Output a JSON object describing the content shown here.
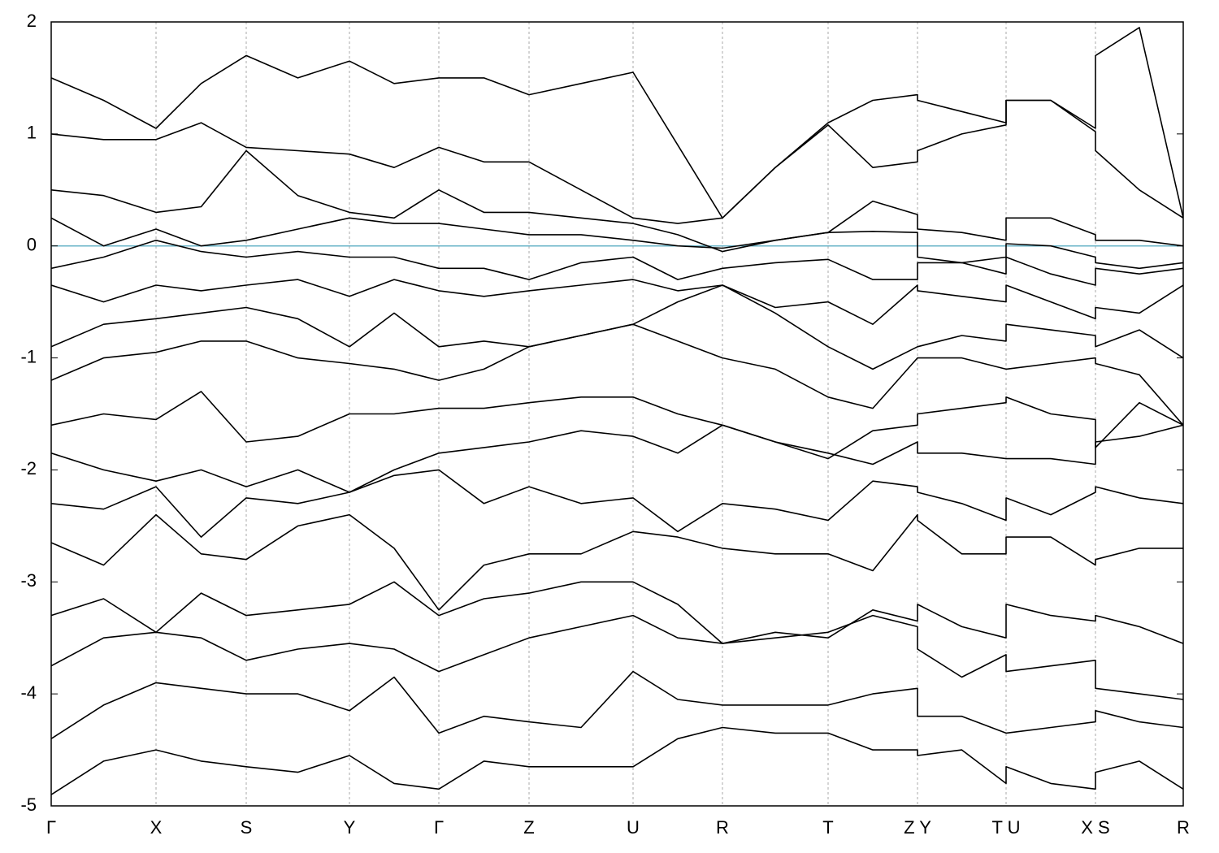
{
  "chart_data": {
    "type": "line",
    "x": [
      0,
      0.645,
      1.29,
      1.845,
      2.4,
      3.035,
      3.67,
      4.22,
      4.77,
      5.325,
      5.88,
      6.52,
      7.16,
      7.71,
      8.26,
      8.91,
      9.56,
      10.11,
      10.66,
      10.66,
      11.205,
      11.75,
      11.75,
      12.3,
      12.85,
      12.85,
      13.39,
      13.93
    ],
    "xlim": [
      0,
      13.93
    ],
    "xticks": [
      {
        "value": 0,
        "label": "Γ"
      },
      {
        "value": 1.29,
        "label": "X"
      },
      {
        "value": 2.4,
        "label": "S"
      },
      {
        "value": 3.67,
        "label": "Y"
      },
      {
        "value": 4.77,
        "label": "Γ"
      },
      {
        "value": 5.88,
        "label": "Z"
      },
      {
        "value": 7.16,
        "label": "U"
      },
      {
        "value": 8.26,
        "label": "R"
      },
      {
        "value": 9.56,
        "label": "T"
      },
      {
        "value": 10.66,
        "label": "Z Y"
      },
      {
        "value": 11.75,
        "label": "T U"
      },
      {
        "value": 12.85,
        "label": "X S"
      },
      {
        "value": 13.93,
        "label": "R"
      }
    ],
    "ylim": [
      -5,
      2
    ],
    "yticks": [
      -5,
      -4,
      -3,
      -2,
      -1,
      0,
      1,
      2
    ],
    "grid": "x",
    "reference_line": {
      "value": 0,
      "color": "#6ab4c8"
    },
    "series": [
      {
        "color": "#000000",
        "values": [
          1.5,
          1.3,
          1.05,
          1.45,
          1.7,
          1.5,
          1.65,
          1.45,
          1.5,
          1.5,
          1.35,
          1.45,
          1.55,
          0.9,
          0.25,
          0.7,
          1.1,
          1.3,
          1.35,
          1.3,
          1.2,
          1.1,
          1.3,
          1.3,
          1.05,
          1.7,
          1.95,
          0.25
        ]
      },
      {
        "color": "#000000",
        "values": [
          1.0,
          0.95,
          0.95,
          1.1,
          0.88,
          0.85,
          0.82,
          0.7,
          0.88,
          0.75,
          0.75,
          0.5,
          0.25,
          0.2,
          0.25,
          0.7,
          1.08,
          0.7,
          0.75,
          0.85,
          1.0,
          1.08,
          1.3,
          1.3,
          1.02,
          0.85,
          0.5,
          0.25
        ]
      },
      {
        "color": "#000000",
        "values": [
          0.5,
          0.45,
          0.3,
          0.35,
          0.85,
          0.45,
          0.3,
          0.25,
          0.5,
          0.3,
          0.3,
          0.25,
          0.2,
          0.1,
          -0.05,
          0.05,
          0.12,
          0.4,
          0.28,
          0.15,
          0.12,
          0.05,
          0.25,
          0.25,
          0.1,
          0.05,
          0.05,
          0.0
        ]
      },
      {
        "color": "#000000",
        "values": [
          0.25,
          0.0,
          0.15,
          0.0,
          0.05,
          0.15,
          0.25,
          0.2,
          0.2,
          0.15,
          0.1,
          0.1,
          0.05,
          0.0,
          -0.02,
          0.05,
          0.12,
          0.13,
          0.12,
          -0.1,
          -0.15,
          -0.1,
          0.02,
          0.0,
          -0.1,
          -0.15,
          -0.2,
          -0.15
        ]
      },
      {
        "color": "#000000",
        "values": [
          -0.2,
          -0.1,
          0.05,
          -0.05,
          -0.1,
          -0.05,
          -0.1,
          -0.1,
          -0.2,
          -0.2,
          -0.3,
          -0.15,
          -0.1,
          -0.3,
          -0.2,
          -0.15,
          -0.12,
          -0.3,
          -0.3,
          -0.15,
          -0.15,
          -0.25,
          -0.1,
          -0.25,
          -0.35,
          -0.2,
          -0.25,
          -0.2
        ]
      },
      {
        "color": "#000000",
        "values": [
          -0.35,
          -0.5,
          -0.35,
          -0.4,
          -0.35,
          -0.3,
          -0.45,
          -0.3,
          -0.4,
          -0.45,
          -0.4,
          -0.35,
          -0.3,
          -0.4,
          -0.35,
          -0.55,
          -0.5,
          -0.7,
          -0.35,
          -0.4,
          -0.45,
          -0.5,
          -0.35,
          -0.5,
          -0.65,
          -0.55,
          -0.6,
          -0.35
        ]
      },
      {
        "color": "#000000",
        "values": [
          -0.9,
          -0.7,
          -0.65,
          -0.6,
          -0.55,
          -0.65,
          -0.9,
          -0.6,
          -0.9,
          -0.85,
          -0.9,
          -0.8,
          -0.7,
          -0.5,
          -0.35,
          -0.6,
          -0.9,
          -1.1,
          -0.9,
          -0.9,
          -0.8,
          -0.85,
          -0.7,
          -0.75,
          -0.8,
          -0.9,
          -0.75,
          -1.0
        ]
      },
      {
        "color": "#000000",
        "values": [
          -1.2,
          -1.0,
          -0.95,
          -0.85,
          -0.85,
          -1.0,
          -1.05,
          -1.1,
          -1.2,
          -1.1,
          -0.9,
          -0.8,
          -0.7,
          -0.85,
          -1.0,
          -1.1,
          -1.35,
          -1.45,
          -1.0,
          -1.0,
          -1.0,
          -1.1,
          -1.1,
          -1.05,
          -1.0,
          -1.05,
          -1.15,
          -1.6
        ]
      },
      {
        "color": "#000000",
        "values": [
          -1.6,
          -1.5,
          -1.55,
          -1.3,
          -1.75,
          -1.7,
          -1.5,
          -1.5,
          -1.45,
          -1.45,
          -1.4,
          -1.35,
          -1.35,
          -1.5,
          -1.6,
          -1.75,
          -1.9,
          -1.65,
          -1.6,
          -1.5,
          -1.45,
          -1.4,
          -1.35,
          -1.5,
          -1.55,
          -1.8,
          -1.4,
          -1.6
        ]
      },
      {
        "color": "#000000",
        "values": [
          -1.85,
          -2.0,
          -2.1,
          -2.0,
          -2.15,
          -2.0,
          -2.2,
          -2.0,
          -1.85,
          -1.8,
          -1.75,
          -1.65,
          -1.7,
          -1.85,
          -1.6,
          -1.75,
          -1.85,
          -1.95,
          -1.75,
          -1.85,
          -1.85,
          -1.9,
          -1.9,
          -1.9,
          -1.95,
          -1.75,
          -1.7,
          -1.6
        ]
      },
      {
        "color": "#000000",
        "values": [
          -2.3,
          -2.35,
          -2.15,
          -2.6,
          -2.25,
          -2.3,
          -2.2,
          -2.05,
          -2.0,
          -2.3,
          -2.15,
          -2.3,
          -2.25,
          -2.55,
          -2.3,
          -2.35,
          -2.45,
          -2.1,
          -2.15,
          -2.2,
          -2.3,
          -2.45,
          -2.25,
          -2.4,
          -2.2,
          -2.15,
          -2.25,
          -2.3
        ]
      },
      {
        "color": "#000000",
        "values": [
          -2.65,
          -2.85,
          -2.4,
          -2.75,
          -2.8,
          -2.5,
          -2.4,
          -2.7,
          -3.25,
          -2.85,
          -2.75,
          -2.75,
          -2.55,
          -2.6,
          -2.7,
          -2.75,
          -2.75,
          -2.9,
          -2.4,
          -2.45,
          -2.75,
          -2.75,
          -2.6,
          -2.6,
          -2.85,
          -2.8,
          -2.7,
          -2.7
        ]
      },
      {
        "color": "#000000",
        "values": [
          -3.3,
          -3.15,
          -3.45,
          -3.1,
          -3.3,
          -3.25,
          -3.2,
          -3.0,
          -3.3,
          -3.15,
          -3.1,
          -3.0,
          -3.0,
          -3.2,
          -3.55,
          -3.45,
          -3.5,
          -3.25,
          -3.35,
          -3.2,
          -3.4,
          -3.5,
          -3.2,
          -3.3,
          -3.35,
          -3.3,
          -3.4,
          -3.55
        ]
      },
      {
        "color": "#000000",
        "values": [
          -3.75,
          -3.5,
          -3.45,
          -3.5,
          -3.7,
          -3.6,
          -3.55,
          -3.6,
          -3.8,
          -3.65,
          -3.5,
          -3.4,
          -3.3,
          -3.5,
          -3.55,
          -3.5,
          -3.45,
          -3.3,
          -3.4,
          -3.6,
          -3.85,
          -3.65,
          -3.8,
          -3.75,
          -3.7,
          -3.95,
          -4.0,
          -4.05
        ]
      },
      {
        "color": "#000000",
        "values": [
          -4.4,
          -4.1,
          -3.9,
          -3.95,
          -4.0,
          -4.0,
          -4.15,
          -3.85,
          -4.35,
          -4.2,
          -4.25,
          -4.3,
          -3.8,
          -4.05,
          -4.1,
          -4.1,
          -4.1,
          -4.0,
          -3.95,
          -4.2,
          -4.2,
          -4.35,
          -4.35,
          -4.3,
          -4.25,
          -4.15,
          -4.25,
          -4.3
        ]
      },
      {
        "color": "#000000",
        "values": [
          -4.9,
          -4.6,
          -4.5,
          -4.6,
          -4.65,
          -4.7,
          -4.55,
          -4.8,
          -4.85,
          -4.6,
          -4.65,
          -4.65,
          -4.65,
          -4.4,
          -4.3,
          -4.35,
          -4.35,
          -4.5,
          -4.5,
          -4.55,
          -4.5,
          -4.8,
          -4.65,
          -4.8,
          -4.85,
          -4.7,
          -4.6,
          -4.85
        ]
      }
    ]
  }
}
